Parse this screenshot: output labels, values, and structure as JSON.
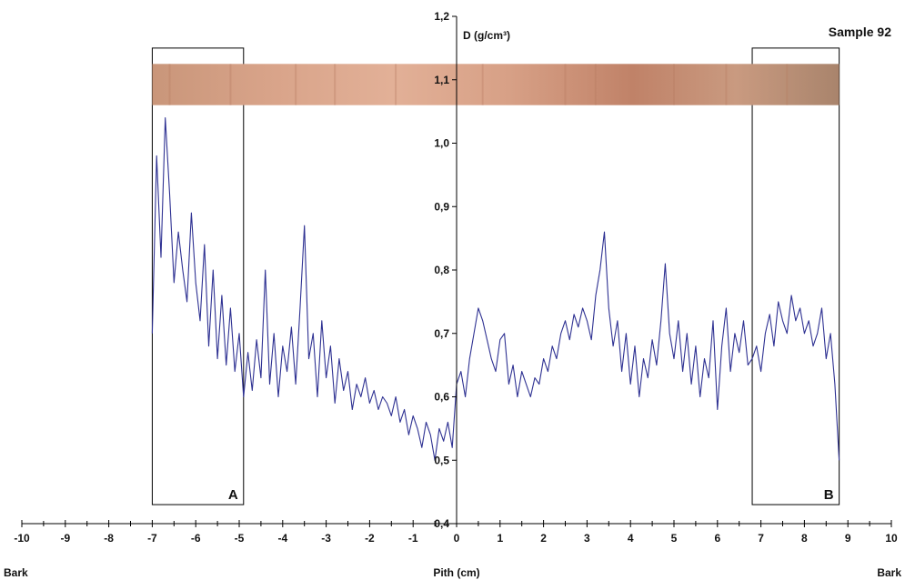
{
  "chart_data": {
    "type": "line",
    "title": "Sample 92",
    "ylabel": "D (g/cm³)",
    "xlabel": "Pith (cm)",
    "x_end_labels": {
      "left": "Bark",
      "right": "Bark"
    },
    "xlim": [
      -10,
      10
    ],
    "ylim": [
      0.4,
      1.2
    ],
    "x_ticks": [
      -10,
      -9,
      -8,
      -7,
      -6,
      -5,
      -4,
      -3,
      -2,
      -1,
      0,
      1,
      2,
      3,
      4,
      5,
      6,
      7,
      8,
      9,
      10
    ],
    "y_ticks": [
      "0,4",
      "0,5",
      "0,6",
      "0,7",
      "0,8",
      "0,9",
      "1,0",
      "1,1",
      "1,2"
    ],
    "grid": false,
    "line_color": "#2e3192",
    "sample_strip": {
      "x_range": [
        -7.0,
        8.8
      ],
      "y_range": [
        1.06,
        1.125
      ]
    },
    "regions": [
      {
        "label": "A",
        "x_range": [
          -7.0,
          -4.9
        ],
        "y_range": [
          0.43,
          1.15
        ]
      },
      {
        "label": "B",
        "x_range": [
          6.8,
          8.8
        ],
        "y_range": [
          0.43,
          1.15
        ]
      }
    ],
    "series": [
      {
        "x": [
          -7.0,
          -6.9,
          -6.8,
          -6.7,
          -6.6,
          -6.5,
          -6.4,
          -6.3,
          -6.2,
          -6.1,
          -6.0,
          -5.9,
          -5.8,
          -5.7,
          -5.6,
          -5.5,
          -5.4,
          -5.3,
          -5.2,
          -5.1,
          -5.0,
          -4.9,
          -4.8,
          -4.7,
          -4.6,
          -4.5,
          -4.4,
          -4.3,
          -4.2,
          -4.1,
          -4.0,
          -3.9,
          -3.8,
          -3.7,
          -3.6,
          -3.5,
          -3.4,
          -3.3,
          -3.2,
          -3.1,
          -3.0,
          -2.9,
          -2.8,
          -2.7,
          -2.6,
          -2.5,
          -2.4,
          -2.3,
          -2.2,
          -2.1,
          -2.0,
          -1.9,
          -1.8,
          -1.7,
          -1.6,
          -1.5,
          -1.4,
          -1.3,
          -1.2,
          -1.1,
          -1.0,
          -0.9,
          -0.8,
          -0.7,
          -0.6,
          -0.5,
          -0.4,
          -0.3,
          -0.2,
          -0.1,
          0.0,
          0.1,
          0.2,
          0.3,
          0.4,
          0.5,
          0.6,
          0.7,
          0.8,
          0.9,
          1.0,
          1.1,
          1.2,
          1.3,
          1.4,
          1.5,
          1.6,
          1.7,
          1.8,
          1.9,
          2.0,
          2.1,
          2.2,
          2.3,
          2.4,
          2.5,
          2.6,
          2.7,
          2.8,
          2.9,
          3.0,
          3.1,
          3.2,
          3.3,
          3.4,
          3.5,
          3.6,
          3.7,
          3.8,
          3.9,
          4.0,
          4.1,
          4.2,
          4.3,
          4.4,
          4.5,
          4.6,
          4.7,
          4.8,
          4.9,
          5.0,
          5.1,
          5.2,
          5.3,
          5.4,
          5.5,
          5.6,
          5.7,
          5.8,
          5.9,
          6.0,
          6.1,
          6.2,
          6.3,
          6.4,
          6.5,
          6.6,
          6.7,
          6.8,
          6.9,
          7.0,
          7.1,
          7.2,
          7.3,
          7.4,
          7.5,
          7.6,
          7.7,
          7.8,
          7.9,
          8.0,
          8.1,
          8.2,
          8.3,
          8.4,
          8.5,
          8.6,
          8.7,
          8.8
        ],
        "y": [
          0.7,
          0.98,
          0.82,
          1.04,
          0.92,
          0.78,
          0.86,
          0.8,
          0.75,
          0.89,
          0.78,
          0.72,
          0.84,
          0.68,
          0.8,
          0.66,
          0.76,
          0.65,
          0.74,
          0.64,
          0.7,
          0.6,
          0.67,
          0.61,
          0.69,
          0.63,
          0.8,
          0.62,
          0.7,
          0.6,
          0.68,
          0.64,
          0.71,
          0.62,
          0.74,
          0.87,
          0.66,
          0.7,
          0.6,
          0.72,
          0.63,
          0.68,
          0.59,
          0.66,
          0.61,
          0.64,
          0.58,
          0.62,
          0.6,
          0.63,
          0.59,
          0.61,
          0.58,
          0.6,
          0.59,
          0.57,
          0.6,
          0.56,
          0.58,
          0.54,
          0.57,
          0.55,
          0.52,
          0.56,
          0.54,
          0.5,
          0.55,
          0.53,
          0.56,
          0.52,
          0.62,
          0.64,
          0.6,
          0.66,
          0.7,
          0.74,
          0.72,
          0.69,
          0.66,
          0.64,
          0.69,
          0.7,
          0.62,
          0.65,
          0.6,
          0.64,
          0.62,
          0.6,
          0.63,
          0.62,
          0.66,
          0.64,
          0.68,
          0.66,
          0.7,
          0.72,
          0.69,
          0.73,
          0.71,
          0.74,
          0.72,
          0.69,
          0.76,
          0.8,
          0.86,
          0.74,
          0.68,
          0.72,
          0.64,
          0.7,
          0.62,
          0.68,
          0.6,
          0.66,
          0.63,
          0.69,
          0.65,
          0.72,
          0.81,
          0.7,
          0.66,
          0.72,
          0.64,
          0.7,
          0.62,
          0.68,
          0.6,
          0.66,
          0.63,
          0.72,
          0.58,
          0.68,
          0.74,
          0.64,
          0.7,
          0.67,
          0.72,
          0.65,
          0.66,
          0.68,
          0.64,
          0.7,
          0.73,
          0.68,
          0.75,
          0.72,
          0.7,
          0.76,
          0.72,
          0.74,
          0.7,
          0.72,
          0.68,
          0.7,
          0.74,
          0.66,
          0.7,
          0.62,
          0.5
        ]
      }
    ]
  }
}
